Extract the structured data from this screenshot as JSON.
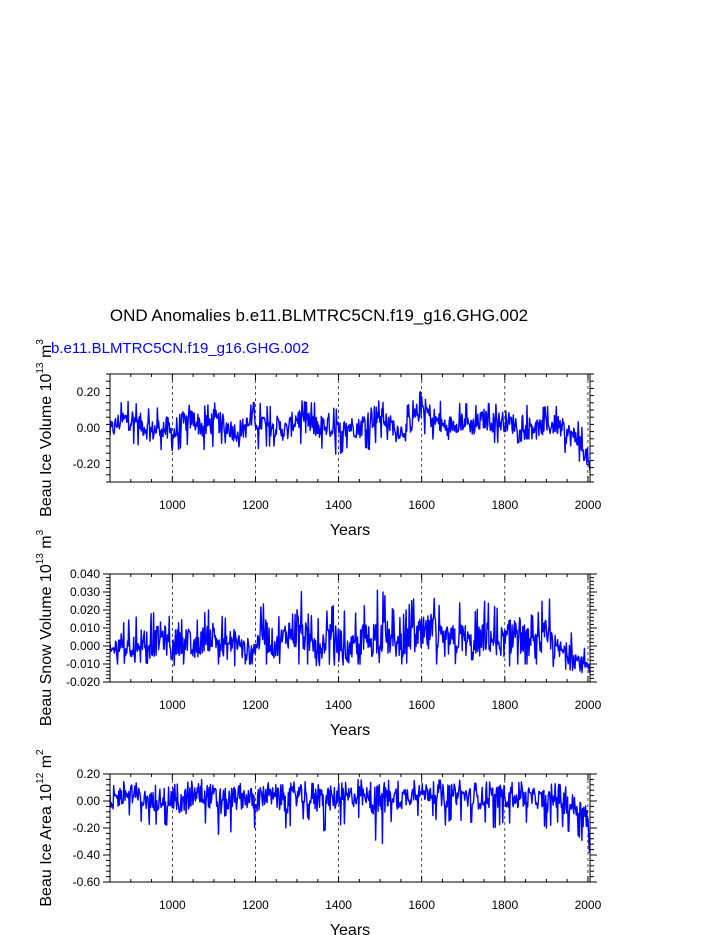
{
  "title": "OND Anomalies b.e11.BLMTRC5CN.f19_g16.GHG.002",
  "run_label": "b.e11.BLMTRC5CN.f19_g16.GHG.002",
  "line_color": "#0000ff",
  "chart_data": [
    {
      "type": "line",
      "xlabel": "Years",
      "ylabel": "Beau Ice Volume 10",
      "ylabel_exp": "13",
      "ylabel_unit": " m",
      "ylabel_unit_exp": "3",
      "xlim": [
        850,
        2005
      ],
      "ylim": [
        -0.3,
        0.3
      ],
      "xticks": [
        1000,
        1200,
        1400,
        1600,
        1800,
        2000
      ],
      "xticks_labels": [
        "1000",
        "1200",
        "1400",
        "1600",
        "1800",
        "2000"
      ],
      "yticks": [
        -0.2,
        0.0,
        0.2
      ],
      "yticks_labels": [
        "-0.20",
        "0.00",
        "0.20"
      ],
      "grid": "vertical-dashed",
      "series": [
        {
          "x": [
            850,
            875,
            900,
            925,
            950,
            975,
            1000,
            1025,
            1050,
            1075,
            1100,
            1125,
            1150,
            1175,
            1200,
            1225,
            1250,
            1275,
            1300,
            1325,
            1350,
            1375,
            1400,
            1425,
            1450,
            1475,
            1500,
            1525,
            1550,
            1575,
            1600,
            1625,
            1650,
            1675,
            1700,
            1725,
            1750,
            1775,
            1800,
            1825,
            1850,
            1875,
            1900,
            1925,
            1950,
            1975,
            2000,
            2005
          ],
          "values": [
            -0.02,
            0.04,
            0.05,
            0.02,
            -0.02,
            0.01,
            -0.04,
            0.03,
            0.05,
            0.0,
            0.04,
            0.02,
            -0.02,
            0.0,
            0.05,
            0.02,
            0.01,
            -0.02,
            0.06,
            0.03,
            0.0,
            0.02,
            -0.03,
            0.01,
            0.0,
            0.06,
            0.07,
            0.02,
            -0.02,
            0.03,
            0.12,
            0.06,
            0.01,
            0.02,
            0.04,
            0.01,
            0.05,
            0.03,
            0.04,
            0.02,
            0.03,
            0.0,
            0.01,
            0.02,
            -0.03,
            -0.06,
            -0.17,
            -0.25
          ],
          "min": [
            -0.1,
            -0.08,
            -0.08,
            -0.1,
            -0.12,
            -0.12,
            -0.15,
            -0.1,
            -0.08,
            -0.12,
            -0.1,
            -0.08,
            -0.1,
            -0.11,
            -0.12,
            -0.1,
            -0.1,
            -0.08,
            -0.09,
            -0.08,
            -0.1,
            -0.13,
            -0.15,
            -0.1,
            -0.09,
            -0.12,
            -0.05,
            -0.07,
            -0.08,
            -0.06,
            -0.02,
            -0.06,
            -0.08,
            -0.05,
            -0.07,
            -0.07,
            -0.07,
            -0.08,
            -0.08,
            -0.09,
            -0.06,
            -0.06,
            -0.09,
            -0.08,
            -0.15,
            -0.17,
            -0.25,
            -0.26
          ],
          "max": [
            0.1,
            0.14,
            0.15,
            0.12,
            0.1,
            0.12,
            0.18,
            0.12,
            0.13,
            0.12,
            0.14,
            0.12,
            0.11,
            0.1,
            0.15,
            0.12,
            0.12,
            0.15,
            0.16,
            0.14,
            0.14,
            0.12,
            0.1,
            0.11,
            0.12,
            0.15,
            0.15,
            0.12,
            0.1,
            0.14,
            0.21,
            0.18,
            0.14,
            0.13,
            0.14,
            0.12,
            0.14,
            0.13,
            0.14,
            0.12,
            0.13,
            0.1,
            0.12,
            0.12,
            0.08,
            0.04,
            -0.05,
            -0.18
          ]
        }
      ]
    },
    {
      "type": "line",
      "xlabel": "Years",
      "ylabel": "Beau Snow Volume 10",
      "ylabel_exp": "13",
      "ylabel_unit": " m",
      "ylabel_unit_exp": "3",
      "xlim": [
        850,
        2005
      ],
      "ylim": [
        -0.02,
        0.04
      ],
      "xticks": [
        1000,
        1200,
        1400,
        1600,
        1800,
        2000
      ],
      "xticks_labels": [
        "1000",
        "1200",
        "1400",
        "1600",
        "1800",
        "2000"
      ],
      "yticks": [
        -0.02,
        -0.01,
        0.0,
        0.01,
        0.02,
        0.03,
        0.04
      ],
      "yticks_labels": [
        "-0.020",
        "-0.010",
        "0.000",
        "0.010",
        "0.020",
        "0.030",
        "0.040"
      ],
      "grid": "vertical-dashed",
      "series": [
        {
          "x": [
            850,
            875,
            900,
            925,
            950,
            975,
            1000,
            1025,
            1050,
            1075,
            1100,
            1125,
            1150,
            1175,
            1200,
            1225,
            1250,
            1275,
            1300,
            1325,
            1350,
            1375,
            1400,
            1425,
            1450,
            1475,
            1500,
            1525,
            1550,
            1575,
            1600,
            1625,
            1650,
            1675,
            1700,
            1725,
            1750,
            1775,
            1800,
            1825,
            1850,
            1875,
            1900,
            1925,
            1950,
            1975,
            2000,
            2005
          ],
          "values": [
            -0.004,
            0.002,
            -0.002,
            0.004,
            0.0,
            0.006,
            -0.002,
            0.008,
            -0.003,
            0.004,
            0.006,
            -0.002,
            0.004,
            -0.003,
            0.001,
            0.006,
            -0.001,
            0.007,
            0.01,
            0.004,
            -0.002,
            0.005,
            0.001,
            -0.004,
            0.004,
            0.003,
            0.008,
            0.003,
            0.0,
            0.006,
            0.004,
            0.008,
            0.002,
            0.003,
            0.005,
            -0.002,
            0.006,
            0.004,
            0.002,
            0.008,
            0.003,
            0.0,
            0.004,
            -0.002,
            -0.004,
            -0.008,
            -0.012,
            -0.015
          ],
          "min": [
            -0.01,
            -0.01,
            -0.009,
            -0.009,
            -0.01,
            -0.01,
            -0.011,
            -0.01,
            -0.01,
            -0.009,
            -0.01,
            -0.01,
            -0.011,
            -0.01,
            -0.01,
            -0.01,
            -0.01,
            -0.009,
            -0.01,
            -0.01,
            -0.011,
            -0.01,
            -0.011,
            -0.01,
            -0.01,
            -0.012,
            -0.009,
            -0.01,
            -0.01,
            -0.009,
            -0.012,
            -0.01,
            -0.01,
            -0.01,
            -0.009,
            -0.01,
            -0.01,
            -0.01,
            -0.012,
            -0.01,
            -0.01,
            -0.01,
            -0.01,
            -0.012,
            -0.013,
            -0.014,
            -0.016,
            -0.018
          ],
          "max": [
            0.01,
            0.012,
            0.015,
            0.017,
            0.018,
            0.02,
            0.015,
            0.032,
            0.012,
            0.018,
            0.022,
            0.015,
            0.02,
            0.012,
            0.018,
            0.025,
            0.015,
            0.02,
            0.039,
            0.018,
            0.015,
            0.02,
            0.025,
            0.015,
            0.02,
            0.025,
            0.033,
            0.022,
            0.015,
            0.025,
            0.03,
            0.028,
            0.02,
            0.022,
            0.025,
            0.018,
            0.025,
            0.022,
            0.018,
            0.034,
            0.02,
            0.015,
            0.032,
            0.012,
            0.008,
            0.006,
            -0.005,
            -0.01
          ]
        }
      ]
    },
    {
      "type": "line",
      "xlabel": "Years",
      "ylabel": "Beau Ice Area 10",
      "ylabel_exp": "12",
      "ylabel_unit": " m",
      "ylabel_unit_exp": "2",
      "xlim": [
        850,
        2005
      ],
      "ylim": [
        -0.6,
        0.2
      ],
      "xticks": [
        1000,
        1200,
        1400,
        1600,
        1800,
        2000
      ],
      "xticks_labels": [
        "1000",
        "1200",
        "1400",
        "1600",
        "1800",
        "2000"
      ],
      "yticks": [
        -0.6,
        -0.4,
        -0.2,
        0.0,
        0.2
      ],
      "yticks_labels": [
        "-0.60",
        "-0.40",
        "-0.20",
        "0.00",
        "0.20"
      ],
      "grid": "vertical-dashed",
      "series": [
        {
          "x": [
            850,
            875,
            900,
            925,
            950,
            975,
            1000,
            1025,
            1050,
            1075,
            1100,
            1125,
            1150,
            1175,
            1200,
            1225,
            1250,
            1275,
            1300,
            1325,
            1350,
            1375,
            1400,
            1425,
            1450,
            1475,
            1500,
            1525,
            1550,
            1575,
            1600,
            1625,
            1650,
            1675,
            1700,
            1725,
            1750,
            1775,
            1800,
            1825,
            1850,
            1875,
            1900,
            1925,
            1950,
            1975,
            2000,
            2005
          ],
          "values": [
            -0.02,
            0.04,
            0.06,
            0.02,
            -0.01,
            0.03,
            0.01,
            -0.02,
            0.04,
            0.06,
            0.02,
            -0.02,
            0.02,
            0.03,
            0.0,
            0.04,
            0.02,
            -0.01,
            0.05,
            0.03,
            0.0,
            0.02,
            0.02,
            0.03,
            0.04,
            0.01,
            0.0,
            0.04,
            0.02,
            0.05,
            0.06,
            0.07,
            0.03,
            0.05,
            0.04,
            0.01,
            0.03,
            0.02,
            0.04,
            0.01,
            0.03,
            0.02,
            0.0,
            0.02,
            -0.02,
            -0.05,
            -0.15,
            -0.45
          ],
          "min": [
            -0.25,
            -0.12,
            -0.1,
            -0.15,
            -0.18,
            -0.16,
            -0.2,
            -0.25,
            -0.18,
            -0.15,
            -0.22,
            -0.28,
            -0.2,
            -0.18,
            -0.2,
            -0.15,
            -0.18,
            -0.2,
            -0.15,
            -0.12,
            -0.25,
            -0.2,
            -0.18,
            -0.16,
            -0.12,
            -0.2,
            -0.36,
            -0.15,
            -0.18,
            -0.12,
            -0.1,
            -0.1,
            -0.2,
            -0.12,
            -0.15,
            -0.16,
            -0.15,
            -0.2,
            -0.15,
            -0.18,
            -0.16,
            -0.12,
            -0.2,
            -0.15,
            -0.22,
            -0.25,
            -0.35,
            -0.56
          ],
          "max": [
            0.1,
            0.14,
            0.15,
            0.12,
            0.1,
            0.14,
            0.12,
            0.13,
            0.15,
            0.16,
            0.15,
            0.12,
            0.14,
            0.12,
            0.13,
            0.14,
            0.12,
            0.12,
            0.15,
            0.14,
            0.12,
            0.14,
            0.13,
            0.14,
            0.16,
            0.14,
            0.12,
            0.16,
            0.14,
            0.15,
            0.16,
            0.17,
            0.15,
            0.16,
            0.15,
            0.13,
            0.14,
            0.14,
            0.15,
            0.13,
            0.15,
            0.13,
            0.12,
            0.13,
            0.1,
            0.08,
            0.04,
            -0.1
          ]
        }
      ]
    }
  ]
}
